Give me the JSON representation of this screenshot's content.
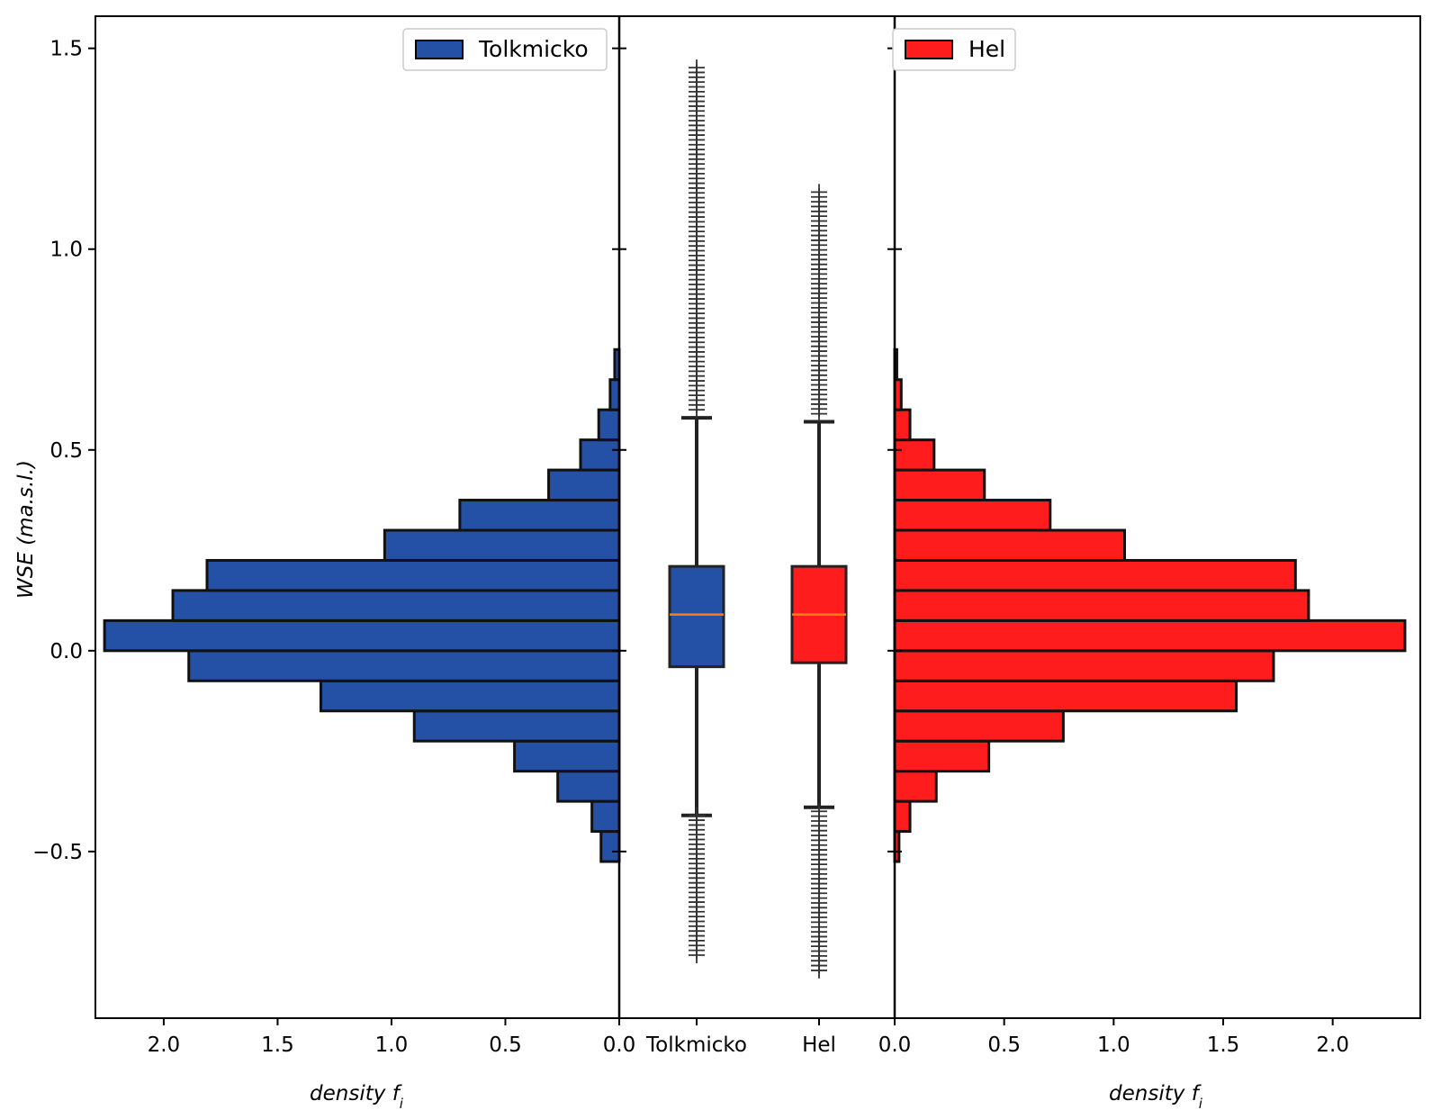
{
  "chart_data": {
    "type": "bar",
    "description_free": true,
    "y_axis": {
      "label_main": "WSE",
      "label_unit": "(ma.s.l.)",
      "ylim": [
        -0.915,
        1.58
      ],
      "ticks": [
        1.5,
        1.0,
        0.5,
        0.0,
        -0.5
      ],
      "tick_labels": [
        "1.5",
        "1.0",
        "0.5",
        "0.0",
        "−0.5"
      ]
    },
    "bin_edges": [
      -0.525,
      -0.45,
      -0.375,
      -0.3,
      -0.225,
      -0.15,
      -0.075,
      0.0,
      0.075,
      0.15,
      0.225,
      0.3,
      0.375,
      0.45,
      0.525,
      0.6,
      0.675,
      0.75
    ],
    "left_panel": {
      "xlabel_main": "density",
      "xlabel_var": "f",
      "xlabel_sub": "i",
      "xlim": [
        2.3,
        0.0
      ],
      "ticks": [
        2.0,
        1.5,
        1.0,
        0.5,
        0.0
      ],
      "tick_labels": [
        "2.0",
        "1.5",
        "1.0",
        "0.5",
        "0.0"
      ],
      "series": {
        "name": "Tolkmicko",
        "color": "#2450a6",
        "values": [
          0.08,
          0.12,
          0.27,
          0.46,
          0.9,
          1.31,
          1.89,
          2.26,
          1.96,
          1.81,
          1.03,
          0.7,
          0.31,
          0.17,
          0.09,
          0.04,
          0.02
        ]
      },
      "legend_label": "Tolkmicko",
      "legend_position": "top-right"
    },
    "middle_panel": {
      "type": "boxplot",
      "tick_labels": [
        "Tolkmicko",
        "Hel"
      ],
      "boxes": [
        {
          "name": "Tolkmicko",
          "color": "#2450a6",
          "median": 0.09,
          "q1": -0.04,
          "q3": 0.21,
          "whisker_low": -0.41,
          "whisker_high": 0.58,
          "outlier_low_max": -0.41,
          "outlier_low_min": -0.76,
          "outlier_high_min": 0.6,
          "outlier_high_max": 1.46
        },
        {
          "name": "Hel",
          "color": "#ff1c1c",
          "median": 0.09,
          "q1": -0.03,
          "q3": 0.21,
          "whisker_low": -0.39,
          "whisker_high": 0.57,
          "outlier_low_max": -0.4,
          "outlier_low_min": -0.8,
          "outlier_high_min": 0.59,
          "outlier_high_max": 1.15
        }
      ],
      "median_color": "#ff7f0e"
    },
    "right_panel": {
      "xlabel_main": "density",
      "xlabel_var": "f",
      "xlabel_sub": "i",
      "xlim": [
        0.0,
        2.4
      ],
      "ticks": [
        0.0,
        0.5,
        1.0,
        1.5,
        2.0
      ],
      "tick_labels": [
        "0.0",
        "0.5",
        "1.0",
        "1.5",
        "2.0"
      ],
      "series": {
        "name": "Hel",
        "color": "#ff1c1c",
        "values": [
          0.02,
          0.07,
          0.19,
          0.43,
          0.77,
          1.56,
          1.73,
          2.33,
          1.89,
          1.83,
          1.05,
          0.71,
          0.41,
          0.18,
          0.07,
          0.03,
          0.01
        ]
      },
      "legend_label": "Hel",
      "legend_position": "top-left"
    }
  }
}
